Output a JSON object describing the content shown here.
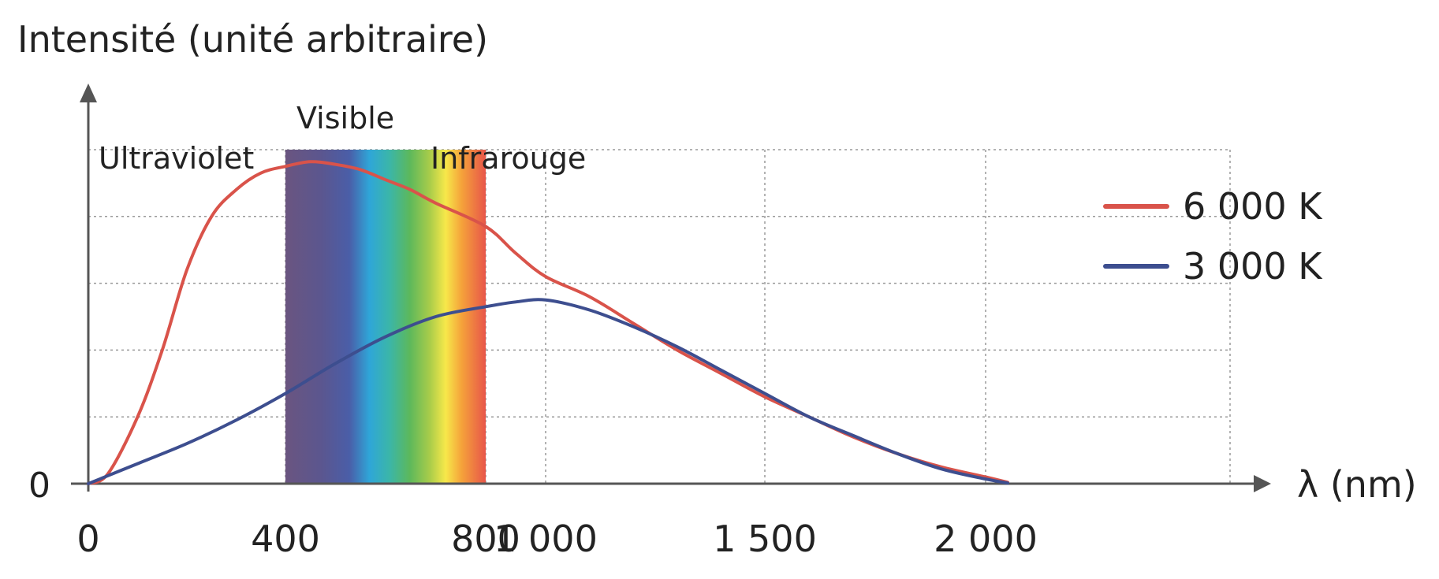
{
  "chart_data": {
    "type": "line",
    "ylabel": "Intensité (unité arbitraire)",
    "xlabel": "λ (nm)",
    "y_tick_labels": [
      "0"
    ],
    "x_ticks": [
      {
        "value": 0,
        "label": "0"
      },
      {
        "value": 400,
        "label": "400"
      },
      {
        "value": 800,
        "label": "800"
      },
      {
        "value": 1000,
        "label": "1 000"
      },
      {
        "value": 1500,
        "label": "1 500"
      },
      {
        "value": 2000,
        "label": "2 000"
      }
    ],
    "x_axis_mapping": {
      "breakpoints_nm": [
        0,
        400,
        800,
        1000,
        1500,
        2000
      ]
    },
    "ylim": [
      0,
      5
    ],
    "grid": true,
    "legend_position": "top-right",
    "regions": [
      {
        "name": "Ultraviolet",
        "from": 0,
        "to": 400
      },
      {
        "name": "Visible",
        "from": 400,
        "to": 800
      },
      {
        "name": "Infrarouge",
        "from": 800,
        "to": 2050
      }
    ],
    "series": [
      {
        "name": "6 000 K",
        "color": "#d9534a",
        "points": [
          [
            0,
            0
          ],
          [
            40,
            0.15
          ],
          [
            100,
            1.0
          ],
          [
            150,
            2.0
          ],
          [
            200,
            3.2
          ],
          [
            250,
            4.0
          ],
          [
            300,
            4.4
          ],
          [
            350,
            4.65
          ],
          [
            400,
            4.75
          ],
          [
            450,
            4.82
          ],
          [
            500,
            4.78
          ],
          [
            550,
            4.7
          ],
          [
            600,
            4.55
          ],
          [
            650,
            4.4
          ],
          [
            700,
            4.2
          ],
          [
            800,
            3.85
          ],
          [
            900,
            3.45
          ],
          [
            1000,
            3.1
          ],
          [
            1100,
            2.8
          ],
          [
            1200,
            2.4
          ],
          [
            1300,
            2.0
          ],
          [
            1400,
            1.65
          ],
          [
            1500,
            1.3
          ],
          [
            1600,
            1.0
          ],
          [
            1700,
            0.7
          ],
          [
            1800,
            0.45
          ],
          [
            1900,
            0.25
          ],
          [
            2000,
            0.1
          ],
          [
            2050,
            0.02
          ]
        ]
      },
      {
        "name": "3 000 K",
        "color": "#3d4e8f",
        "points": [
          [
            0,
            0
          ],
          [
            100,
            0.3
          ],
          [
            200,
            0.6
          ],
          [
            300,
            0.95
          ],
          [
            400,
            1.35
          ],
          [
            500,
            1.8
          ],
          [
            600,
            2.2
          ],
          [
            700,
            2.5
          ],
          [
            800,
            2.65
          ],
          [
            900,
            2.72
          ],
          [
            1000,
            2.75
          ],
          [
            1100,
            2.6
          ],
          [
            1200,
            2.35
          ],
          [
            1300,
            2.05
          ],
          [
            1400,
            1.7
          ],
          [
            1500,
            1.35
          ],
          [
            1600,
            1.0
          ],
          [
            1700,
            0.72
          ],
          [
            1800,
            0.45
          ],
          [
            1900,
            0.22
          ],
          [
            2000,
            0.07
          ],
          [
            2050,
            0.01
          ]
        ]
      }
    ]
  }
}
